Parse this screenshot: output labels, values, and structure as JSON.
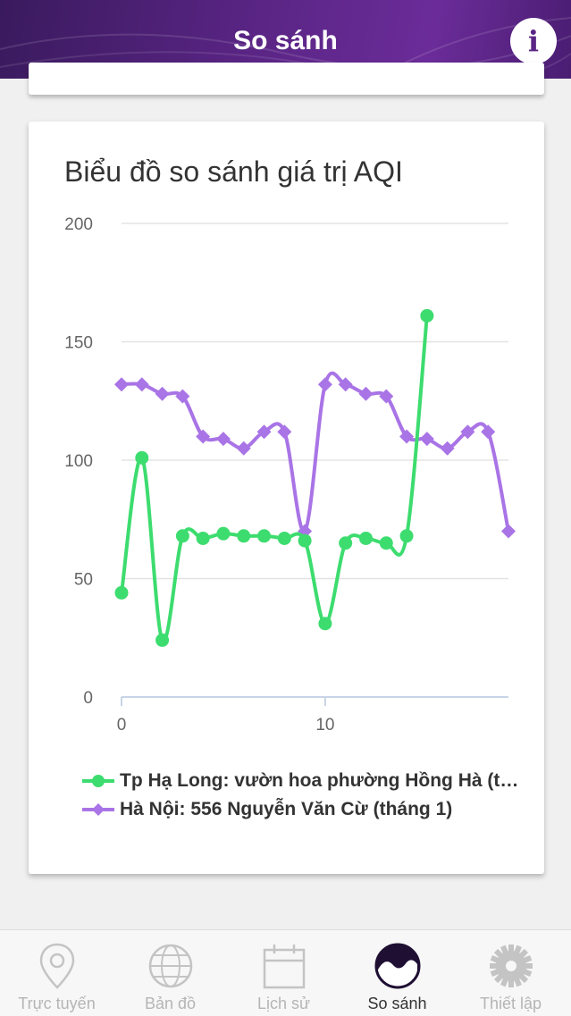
{
  "header": {
    "title": "So sánh",
    "info_label": "i"
  },
  "chart_data": {
    "type": "line",
    "title": "Biểu đồ so sánh giá trị AQI",
    "ylim": [
      0,
      200
    ],
    "yticks": [
      0,
      50,
      100,
      150,
      200
    ],
    "xlim": [
      0,
      19
    ],
    "xticks": [
      0,
      10
    ],
    "grid": true,
    "legend_position": "bottom",
    "series": [
      {
        "name": "Tp Hạ Long: vườn hoa phường Hồng Hà (t…",
        "color": "#3ddc6f",
        "marker": "circle",
        "x": [
          0,
          1,
          2,
          3,
          4,
          5,
          6,
          7,
          8,
          9,
          10,
          11,
          12,
          13,
          14,
          15
        ],
        "values": [
          44,
          101,
          24,
          68,
          67,
          69,
          68,
          68,
          67,
          66,
          31,
          65,
          67,
          65,
          68,
          161
        ]
      },
      {
        "name": "Hà Nội: 556 Nguyễn Văn Cừ (tháng 1)",
        "color": "#a974e6",
        "marker": "diamond",
        "x": [
          0,
          1,
          2,
          3,
          4,
          5,
          6,
          7,
          8,
          9,
          10,
          11,
          12,
          13,
          14,
          15,
          16,
          17,
          18,
          19
        ],
        "values": [
          132,
          132,
          128,
          127,
          110,
          109,
          105,
          112,
          112,
          70,
          132,
          132,
          128,
          127,
          110,
          109,
          105,
          112,
          112,
          70
        ]
      }
    ]
  },
  "tabs": [
    {
      "label": "Trực tuyến",
      "icon": "location-pin-icon",
      "active": false
    },
    {
      "label": "Bản đồ",
      "icon": "globe-icon",
      "active": false
    },
    {
      "label": "Lịch sử",
      "icon": "calendar-icon",
      "active": false
    },
    {
      "label": "So sánh",
      "icon": "compare-wave-icon",
      "active": true
    },
    {
      "label": "Thiết lập",
      "icon": "gear-icon",
      "active": false
    }
  ]
}
